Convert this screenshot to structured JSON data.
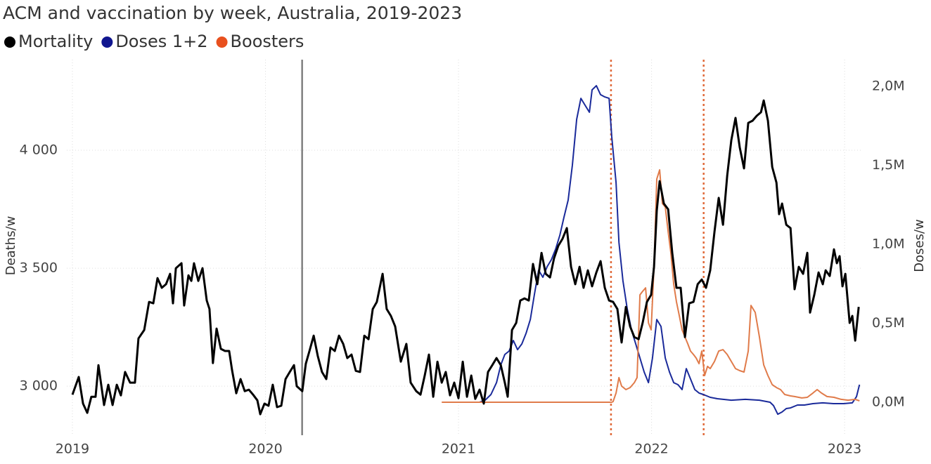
{
  "chart_data": {
    "type": "line",
    "title": "ACM and vaccination by week, Australia, 2019-2023",
    "ylabel": "Deaths/w",
    "y2label": "Doses/w",
    "xlim": [
      2018.971,
      2023.087
    ],
    "xticks": [
      2019,
      2020,
      2021,
      2022,
      2023
    ],
    "ylim": [
      2792,
      4384
    ],
    "yticks": [
      {
        "value": 3000,
        "label": "3 000"
      },
      {
        "value": 3500,
        "label": "3 500"
      },
      {
        "value": 4000,
        "label": "4 000"
      }
    ],
    "y2lim": [
      -209000,
      2169000
    ],
    "y2ticks": [
      {
        "value": 0,
        "label": "0,0M"
      },
      {
        "value": 500000,
        "label": "0,5M"
      },
      {
        "value": 1000000,
        "label": "1,0M"
      },
      {
        "value": 1500000,
        "label": "1,5M"
      },
      {
        "value": 2000000,
        "label": "2,0M"
      }
    ],
    "grid": true,
    "legend": "top-left",
    "reference_lines": [
      {
        "x": 2020.19,
        "color": "#808080",
        "style": "solid"
      },
      {
        "x": 2021.79,
        "color": "#e06a3a",
        "style": "dotted"
      },
      {
        "x": 2022.27,
        "color": "#e06a3a",
        "style": "dotted"
      }
    ],
    "series": [
      {
        "name": "Mortality",
        "color": "#000000",
        "width": 3,
        "x": [
          2019.0,
          2019.033,
          2019.055,
          2019.077,
          2019.098,
          2019.12,
          2019.135,
          2019.164,
          2019.186,
          2019.208,
          2019.23,
          2019.251,
          2019.273,
          2019.299,
          2019.324,
          2019.342,
          2019.372,
          2019.397,
          2019.419,
          2019.441,
          2019.463,
          2019.485,
          2019.506,
          2019.521,
          2019.536,
          2019.565,
          2019.579,
          2019.601,
          2019.616,
          2019.63,
          2019.652,
          2019.674,
          2019.696,
          2019.71,
          2019.728,
          2019.747,
          2019.769,
          2019.791,
          2019.812,
          2019.827,
          2019.849,
          2019.871,
          2019.893,
          2019.914,
          2019.936,
          2019.958,
          2019.973,
          2019.995,
          2020.016,
          2020.038,
          2020.06,
          2020.082,
          2020.104,
          2020.126,
          2020.148,
          2020.162,
          2020.191,
          2020.209,
          2020.228,
          2020.25,
          2020.271,
          2020.293,
          2020.315,
          2020.337,
          2020.359,
          2020.381,
          2020.403,
          2020.424,
          2020.446,
          2020.468,
          2020.49,
          2020.512,
          2020.534,
          2020.556,
          2020.577,
          2020.607,
          2020.628,
          2020.65,
          2020.672,
          2020.701,
          2020.73,
          2020.752,
          2020.781,
          2020.803,
          2020.825,
          2020.847,
          2020.869,
          2020.891,
          2020.913,
          2020.934,
          2020.956,
          2020.978,
          2021.0,
          2021.022,
          2021.044,
          2021.066,
          2021.087,
          2021.109,
          2021.131,
          2021.153,
          2021.175,
          2021.197,
          2021.219,
          2021.24,
          2021.255,
          2021.277,
          2021.299,
          2021.32,
          2021.342,
          2021.364,
          2021.386,
          2021.408,
          2021.43,
          2021.452,
          2021.474,
          2021.495,
          2021.517,
          2021.539,
          2021.561,
          2021.583,
          2021.605,
          2021.627,
          2021.648,
          2021.67,
          2021.692,
          2021.714,
          2021.736,
          2021.758,
          2021.78,
          2021.801,
          2021.823,
          2021.845,
          2021.867,
          2021.889,
          2021.911,
          2021.933,
          2021.954,
          2021.976,
          2021.998,
          2022.013,
          2022.027,
          2022.042,
          2022.064,
          2022.086,
          2022.107,
          2022.129,
          2022.151,
          2022.173,
          2022.195,
          2022.217,
          2022.239,
          2022.26,
          2022.282,
          2022.304,
          2022.326,
          2022.348,
          2022.37,
          2022.392,
          2022.413,
          2022.435,
          2022.457,
          2022.479,
          2022.501,
          2022.523,
          2022.545,
          2022.567,
          2022.581,
          2022.603,
          2022.625,
          2022.647,
          2022.661,
          2022.676,
          2022.698,
          2022.72,
          2022.741,
          2022.763,
          2022.785,
          2022.807,
          2022.821,
          2022.843,
          2022.865,
          2022.887,
          2022.902,
          2022.923,
          2022.945,
          2022.96,
          2022.974,
          2022.989,
          2023.004,
          2023.026,
          2023.04,
          2023.055,
          2023.073
        ],
        "values": [
          2964,
          3039,
          2926,
          2887,
          2955,
          2955,
          3089,
          2920,
          3006,
          2920,
          3006,
          2961,
          3060,
          3015,
          3015,
          3202,
          3238,
          3357,
          3351,
          3458,
          3417,
          3432,
          3476,
          3351,
          3500,
          3521,
          3342,
          3470,
          3446,
          3521,
          3446,
          3500,
          3363,
          3327,
          3098,
          3244,
          3158,
          3149,
          3149,
          3068,
          2970,
          3030,
          2979,
          2985,
          2964,
          2940,
          2881,
          2926,
          2917,
          3006,
          2911,
          2917,
          3030,
          3060,
          3089,
          3000,
          2979,
          3095,
          3149,
          3214,
          3128,
          3060,
          3030,
          3164,
          3149,
          3214,
          3179,
          3119,
          3134,
          3065,
          3060,
          3214,
          3199,
          3327,
          3357,
          3476,
          3327,
          3298,
          3253,
          3104,
          3179,
          3015,
          2979,
          2964,
          3045,
          3134,
          2955,
          3104,
          3015,
          3060,
          2961,
          3015,
          2949,
          3104,
          2955,
          3045,
          2946,
          2985,
          2926,
          3060,
          3089,
          3119,
          3089,
          3015,
          2955,
          3238,
          3268,
          3363,
          3372,
          3363,
          3518,
          3432,
          3565,
          3476,
          3461,
          3542,
          3595,
          3625,
          3670,
          3506,
          3432,
          3506,
          3417,
          3491,
          3423,
          3482,
          3530,
          3417,
          3363,
          3357,
          3327,
          3185,
          3336,
          3253,
          3208,
          3199,
          3268,
          3357,
          3387,
          3506,
          3744,
          3869,
          3774,
          3750,
          3565,
          3417,
          3417,
          3208,
          3351,
          3357,
          3432,
          3452,
          3417,
          3491,
          3655,
          3798,
          3684,
          3893,
          4042,
          4137,
          4012,
          3923,
          4116,
          4125,
          4146,
          4161,
          4211,
          4125,
          3929,
          3863,
          3729,
          3774,
          3684,
          3670,
          3411,
          3506,
          3476,
          3565,
          3312,
          3387,
          3482,
          3432,
          3491,
          3467,
          3580,
          3521,
          3551,
          3423,
          3476,
          3268,
          3298,
          3193,
          3336
        ]
      },
      {
        "name": "Doses 1+2",
        "color": "#1a2a9a",
        "legend_color": "#10168f",
        "width": 2,
        "axis": "y2",
        "x": [
          2021.109,
          2021.138,
          2021.168,
          2021.197,
          2021.219,
          2021.24,
          2021.262,
          2021.284,
          2021.306,
          2021.328,
          2021.35,
          2021.372,
          2021.393,
          2021.415,
          2021.437,
          2021.459,
          2021.481,
          2021.503,
          2021.525,
          2021.546,
          2021.568,
          2021.59,
          2021.612,
          2021.634,
          2021.656,
          2021.678,
          2021.692,
          2021.714,
          2021.736,
          2021.758,
          2021.78,
          2021.794,
          2021.816,
          2021.831,
          2021.852,
          2021.874,
          2021.896,
          2021.918,
          2021.94,
          2021.962,
          2021.984,
          2022.005,
          2022.027,
          2022.049,
          2022.071,
          2022.093,
          2022.115,
          2022.137,
          2022.158,
          2022.18,
          2022.202,
          2022.224,
          2022.246,
          2022.268,
          2022.304,
          2022.341,
          2022.413,
          2022.486,
          2022.559,
          2022.614,
          2022.632,
          2022.654,
          2022.676,
          2022.698,
          2022.72,
          2022.756,
          2022.792,
          2022.836,
          2022.887,
          2022.942,
          2022.996,
          2023.04,
          2023.062,
          2023.077
        ],
        "values": [
          0,
          13000,
          49000,
          124000,
          236000,
          302000,
          324000,
          391000,
          333000,
          369000,
          436000,
          524000,
          680000,
          836000,
          791000,
          858000,
          902000,
          969000,
          1058000,
          1169000,
          1280000,
          1502000,
          1791000,
          1924000,
          1880000,
          1836000,
          1978000,
          2004000,
          1947000,
          1933000,
          1924000,
          1680000,
          1391000,
          1013000,
          769000,
          591000,
          458000,
          369000,
          280000,
          191000,
          124000,
          280000,
          524000,
          480000,
          280000,
          191000,
          124000,
          111000,
          80000,
          213000,
          147000,
          80000,
          58000,
          49000,
          31000,
          22000,
          13000,
          18000,
          13000,
          0,
          -22000,
          -76000,
          -62000,
          -40000,
          -36000,
          -18000,
          -18000,
          -9000,
          -4000,
          -9000,
          -9000,
          -4000,
          36000,
          111000
        ]
      },
      {
        "name": "Boosters",
        "color": "#e07b4a",
        "legend_color": "#e8501e",
        "width": 2,
        "axis": "y2",
        "x": [
          2020.913,
          2021.175,
          2021.539,
          2021.794,
          2021.801,
          2021.816,
          2021.831,
          2021.845,
          2021.867,
          2021.889,
          2021.911,
          2021.925,
          2021.94,
          2021.954,
          2021.969,
          2021.984,
          2021.998,
          2022.013,
          2022.027,
          2022.042,
          2022.056,
          2022.071,
          2022.086,
          2022.1,
          2022.115,
          2022.129,
          2022.144,
          2022.158,
          2022.173,
          2022.188,
          2022.202,
          2022.217,
          2022.231,
          2022.246,
          2022.26,
          2022.275,
          2022.29,
          2022.304,
          2022.326,
          2022.348,
          2022.37,
          2022.392,
          2022.413,
          2022.435,
          2022.457,
          2022.479,
          2022.501,
          2022.515,
          2022.537,
          2022.559,
          2022.581,
          2022.603,
          2022.625,
          2022.647,
          2022.668,
          2022.69,
          2022.72,
          2022.741,
          2022.778,
          2022.807,
          2022.836,
          2022.858,
          2022.88,
          2022.909,
          2022.945,
          2022.982,
          2023.018,
          2023.055,
          2023.077
        ],
        "values": [
          0,
          0,
          0,
          0,
          4000,
          58000,
          156000,
          102000,
          80000,
          93000,
          124000,
          156000,
          680000,
          702000,
          724000,
          502000,
          458000,
          858000,
          1413000,
          1471000,
          1258000,
          1236000,
          1080000,
          947000,
          747000,
          636000,
          547000,
          458000,
          413000,
          369000,
          324000,
          302000,
          280000,
          244000,
          324000,
          169000,
          227000,
          213000,
          258000,
          324000,
          333000,
          302000,
          258000,
          213000,
          200000,
          191000,
          324000,
          613000,
          569000,
          413000,
          236000,
          169000,
          111000,
          93000,
          80000,
          49000,
          40000,
          36000,
          27000,
          31000,
          58000,
          80000,
          58000,
          36000,
          31000,
          18000,
          13000,
          18000,
          9000
        ]
      }
    ]
  }
}
